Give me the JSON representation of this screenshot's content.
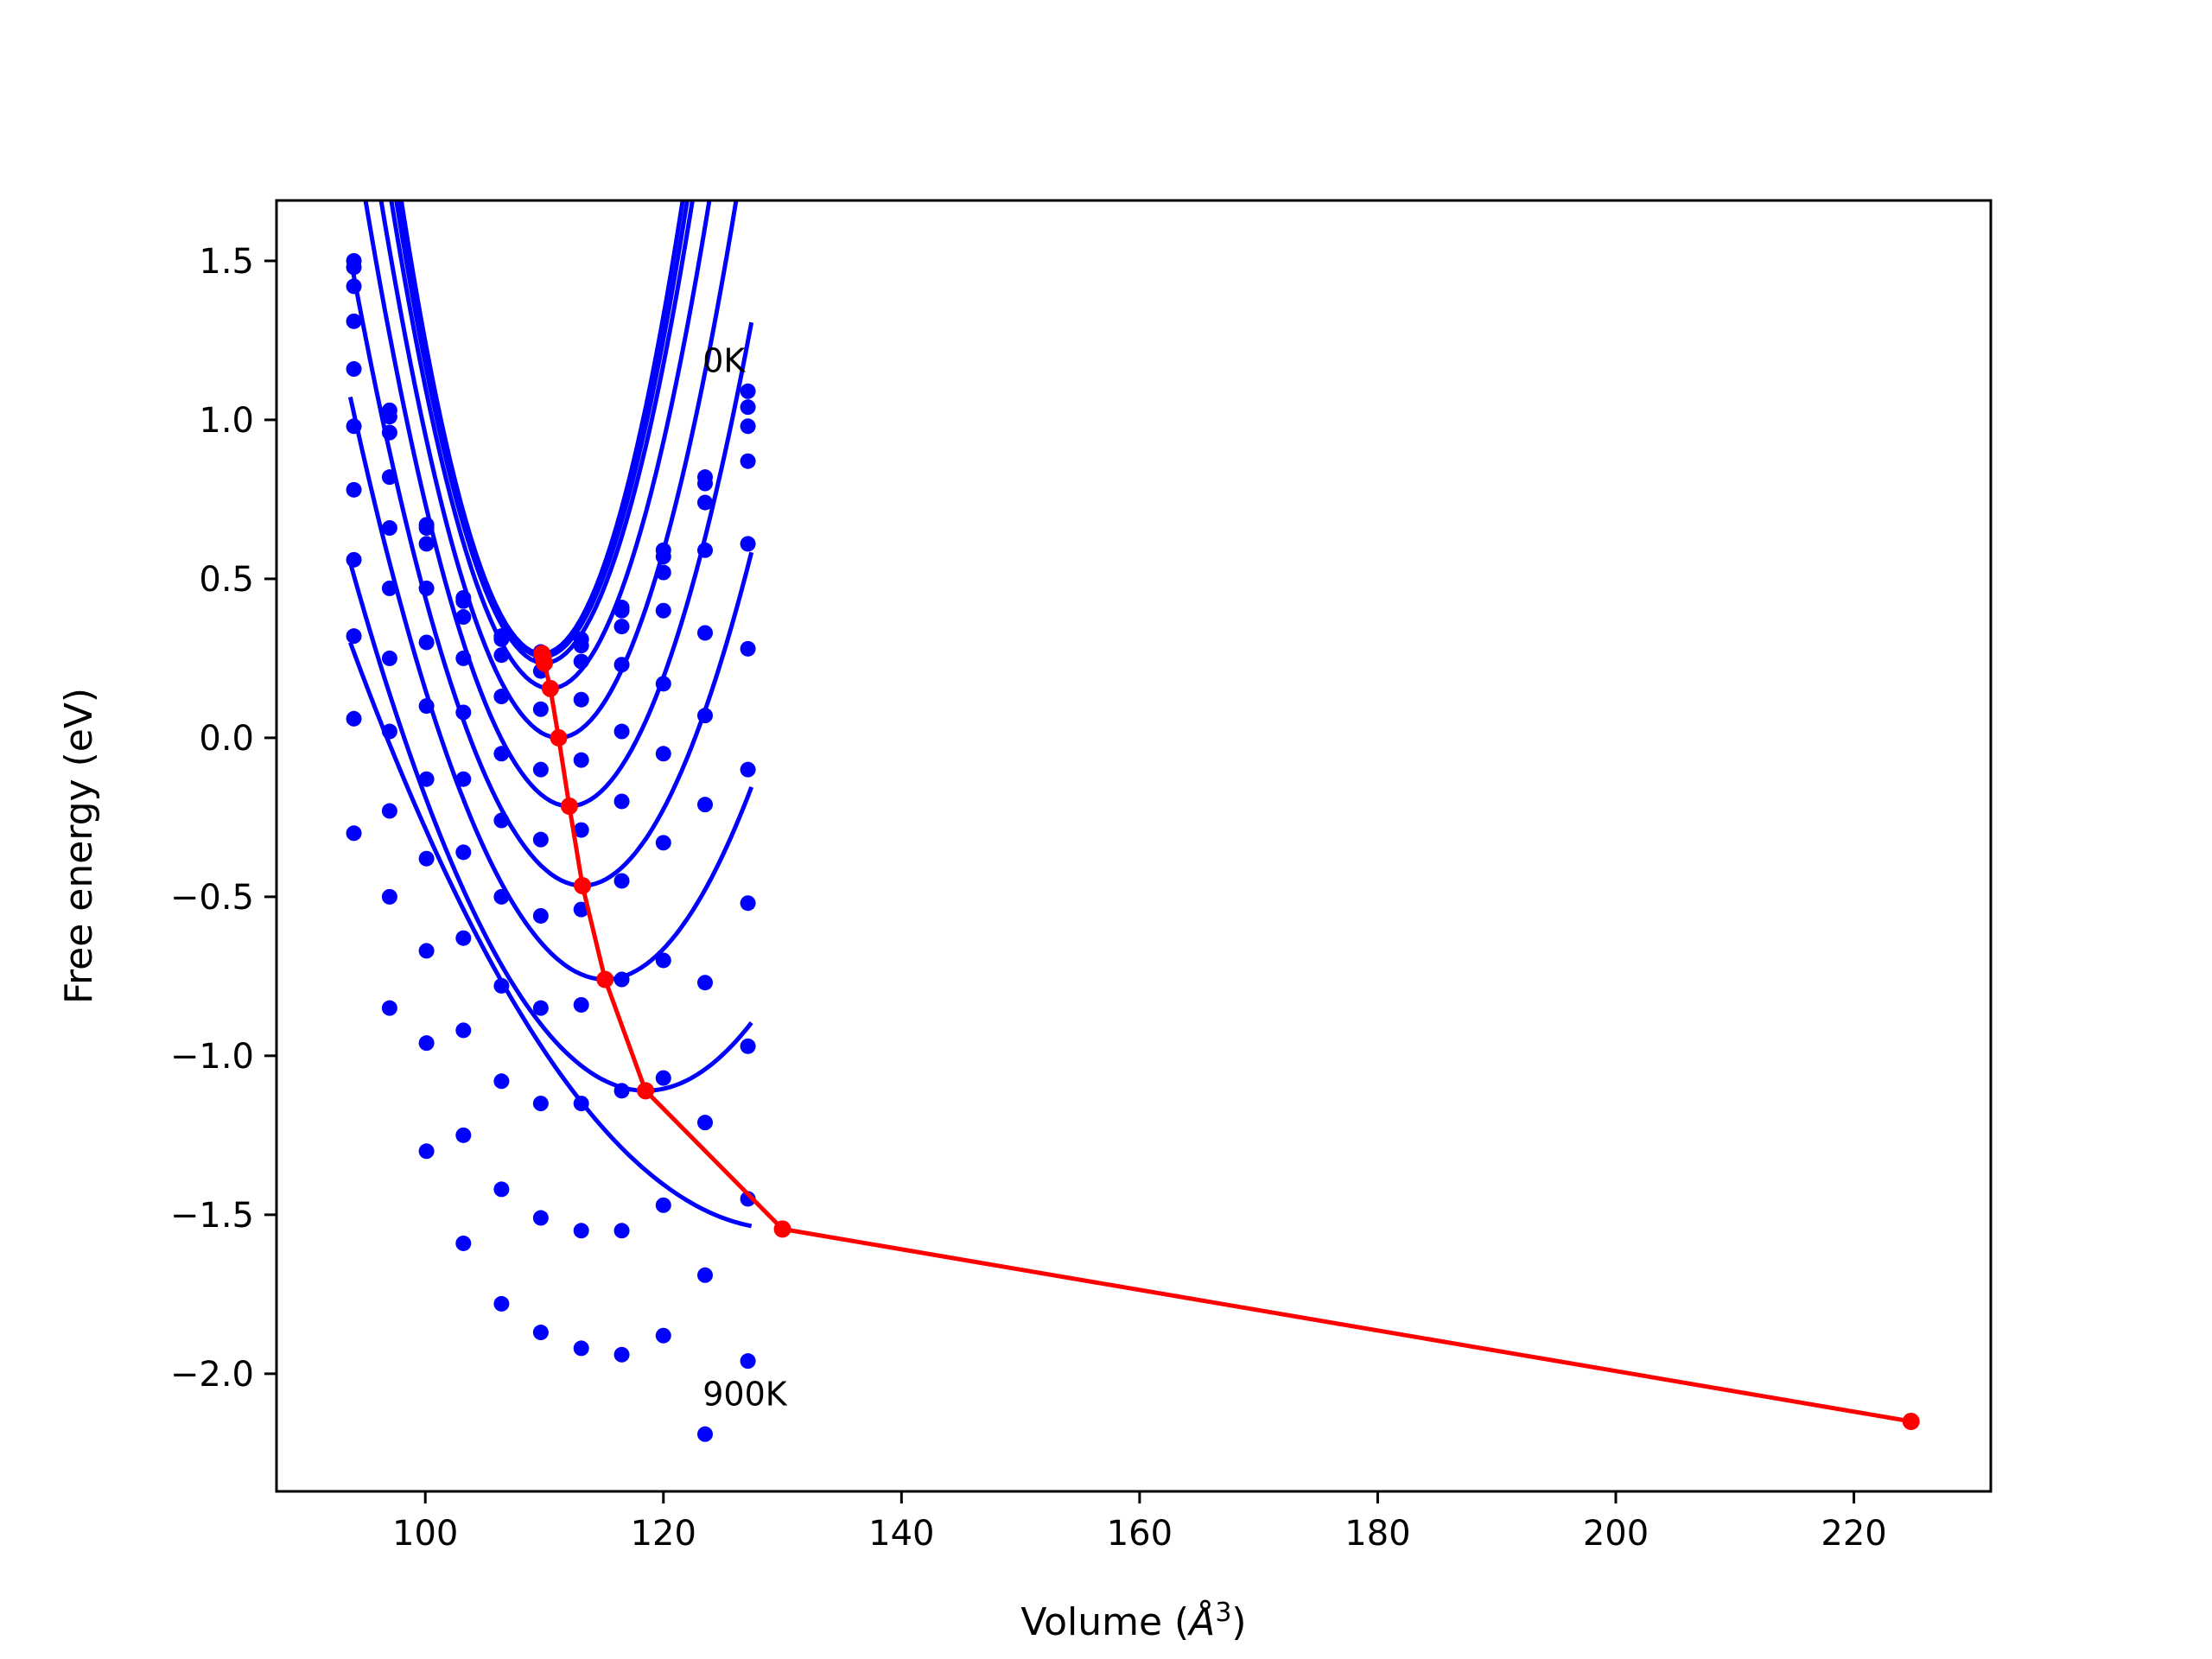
{
  "chart_data": {
    "type": "scatter",
    "title": "",
    "xlabel": "Volume (",
    "xlabel_symbol": "Å",
    "xlabel_exponent": "3",
    "xlabel_close": ")",
    "ylabel": "Free energy (eV)",
    "xlim": [
      87.5,
      231.5
    ],
    "ylim": [
      -2.37,
      1.69
    ],
    "xticks": [
      100,
      120,
      140,
      160,
      180,
      200,
      220
    ],
    "xtick_labels": [
      "100",
      "120",
      "140",
      "160",
      "180",
      "200",
      "220"
    ],
    "yticks": [
      -2.0,
      -1.5,
      -1.0,
      -0.5,
      0.0,
      0.5,
      1.0,
      1.5
    ],
    "ytick_labels": [
      "−2.0",
      "−1.5",
      "−1.0",
      "−0.5",
      "0.0",
      "0.5",
      "1.0",
      "1.5"
    ],
    "grid": false,
    "annotations": [
      {
        "text": "0K",
        "x": 123.3,
        "y": 1.15
      },
      {
        "text": "900K",
        "x": 123.3,
        "y": -2.1
      }
    ],
    "colors": {
      "isotherms": "#0000ff",
      "minima": "#ff0000",
      "axes": "#000000"
    },
    "volumes": [
      94.0,
      97.0,
      100.1,
      103.2,
      106.4,
      109.7,
      113.1,
      116.5,
      120.0,
      123.5,
      127.1
    ],
    "series": [
      {
        "values": [
          1.5,
          1.03,
          0.67,
          0.44,
          0.32,
          0.27,
          0.31,
          0.41,
          0.59,
          0.82,
          1.09
        ],
        "min_volume": 109.8,
        "min_energy": 0.265,
        "curve_a": 0.0102
      },
      {
        "values": [
          1.48,
          1.01,
          0.66,
          0.43,
          0.31,
          0.26,
          0.29,
          0.4,
          0.57,
          0.8,
          1.04
        ],
        "min_volume": 109.9,
        "min_energy": 0.255,
        "curve_a": 0.0098
      },
      {
        "values": [
          1.42,
          0.96,
          0.61,
          0.38,
          0.26,
          0.21,
          0.24,
          0.35,
          0.52,
          0.74,
          0.98
        ],
        "min_volume": 110.0,
        "min_energy": 0.235,
        "curve_a": 0.0094
      },
      {
        "values": [
          1.31,
          0.82,
          0.47,
          0.25,
          0.13,
          0.09,
          0.12,
          0.23,
          0.4,
          0.59,
          0.87
        ],
        "min_volume": 110.5,
        "min_energy": 0.155,
        "curve_a": 0.0086
      },
      {
        "values": [
          1.16,
          0.66,
          0.3,
          0.08,
          -0.05,
          -0.1,
          -0.07,
          0.02,
          0.17,
          0.33,
          0.61
        ],
        "min_volume": 111.2,
        "min_energy": 0.0,
        "curve_a": 0.0076
      },
      {
        "values": [
          0.98,
          0.47,
          0.1,
          -0.13,
          -0.26,
          -0.32,
          -0.29,
          -0.2,
          -0.05,
          0.07,
          0.28
        ],
        "min_volume": 112.1,
        "min_energy": -0.215,
        "curve_a": 0.0065
      },
      {
        "values": [
          0.78,
          0.25,
          -0.13,
          -0.36,
          -0.5,
          -0.56,
          -0.54,
          -0.45,
          -0.33,
          -0.21,
          -0.1
        ],
        "min_volume": 113.2,
        "min_energy": -0.465,
        "curve_a": 0.0052
      },
      {
        "values": [
          0.56,
          0.02,
          -0.38,
          -0.63,
          -0.78,
          -0.85,
          -0.84,
          -0.76,
          -0.7,
          -0.77,
          -0.52
        ],
        "min_volume": 115.1,
        "min_energy": -0.76,
        "curve_a": 0.004
      },
      {
        "values": [
          0.32,
          -0.23,
          -0.67,
          -0.92,
          -1.08,
          -1.15,
          -1.15,
          -1.11,
          -1.07,
          -1.21,
          -0.97
        ],
        "min_volume": 118.5,
        "min_energy": -1.11,
        "curve_a": 0.0027
      },
      {
        "values": [
          0.06,
          -0.5,
          -0.96,
          -1.25,
          -1.42,
          -1.51,
          -1.55,
          -1.55,
          -1.47,
          -1.69,
          -1.45
        ],
        "min_volume": 130.0,
        "min_energy": -1.545,
        "curve_a": 0.0014
      },
      {
        "values": [
          -0.3,
          -0.85,
          -1.3,
          -1.59,
          -1.78,
          -1.87,
          -1.92,
          -1.94,
          -1.88,
          -2.19,
          -1.96
        ],
        "min_volume": 224.8,
        "min_energy": -2.15,
        "curve_a": 0.0008
      }
    ],
    "equilibrium_line": {
      "x": [
        109.8,
        109.9,
        110.0,
        110.5,
        111.2,
        112.1,
        113.2,
        115.1,
        118.5,
        130.0,
        224.8
      ],
      "y": [
        0.265,
        0.255,
        0.235,
        0.155,
        0.0,
        -0.215,
        -0.465,
        -0.76,
        -1.11,
        -1.545,
        -2.15
      ]
    }
  }
}
